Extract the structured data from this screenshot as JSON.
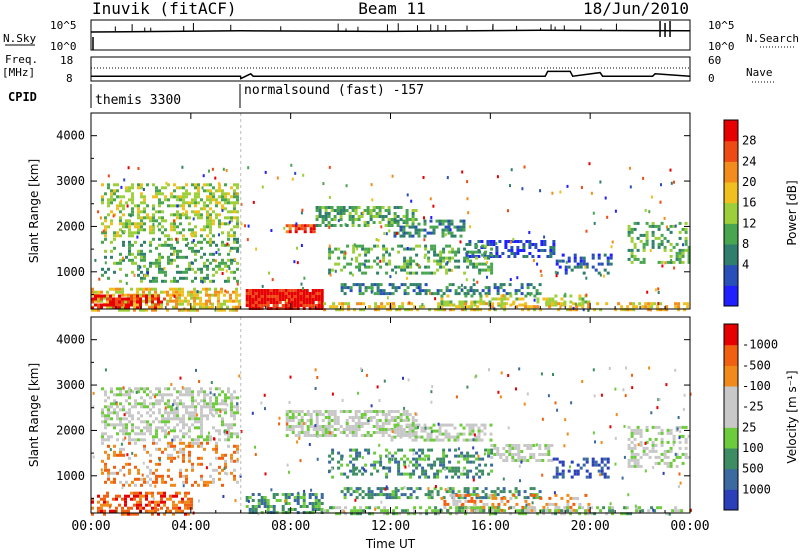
{
  "header": {
    "station": "Inuvik (fitACF)",
    "beam": "Beam 11",
    "date": "18/Jun/2010"
  },
  "top_panels": {
    "nsky_label": "N.Sky",
    "nsky_ticks": [
      "10^5",
      "10^0"
    ],
    "nsearch_label": "N.Search",
    "nsearch_ticks": [
      "10^5",
      "10^0"
    ],
    "freq_label_1": "Freq.",
    "freq_label_2": "[MHz]",
    "freq_ticks": [
      "18",
      "8"
    ],
    "nave_label": "Nave",
    "nave_ticks": [
      "60",
      "0"
    ],
    "cpid_label": "CPID",
    "cpid_entries": [
      {
        "label": "themis 3300",
        "start_hour": 0
      },
      {
        "label": "normalsound (fast) -157",
        "start_hour": 6
      }
    ]
  },
  "chart_data": [
    {
      "type": "heatmap",
      "title": "",
      "xlabel": "",
      "ylabel": "Slant Range [km]",
      "xlim": [
        0,
        24
      ],
      "ylim": [
        180,
        4500
      ],
      "yticks": [
        1000,
        2000,
        3000,
        4000
      ],
      "colorbar": {
        "label": "Power [dB]",
        "ticks": [
          "4",
          "8",
          "12",
          "16",
          "20",
          "24",
          "28"
        ],
        "colors": [
          "#1f1fff",
          "#2850b8",
          "#2f7f6c",
          "#49a54f",
          "#9ccf39",
          "#f0c020",
          "#f28c1c",
          "#ee4a16",
          "#e60000"
        ]
      },
      "regions": [
        {
          "t0": 0.4,
          "t1": 5.9,
          "r0": 1800,
          "r1": 2950,
          "level": 4,
          "density": 0.45
        },
        {
          "t0": 0.4,
          "t1": 5.9,
          "r0": 800,
          "r1": 1750,
          "level": 3,
          "density": 0.3
        },
        {
          "t0": 0.0,
          "t1": 6.0,
          "r0": 180,
          "r1": 650,
          "level": 5,
          "density": 0.6
        },
        {
          "t0": 0.0,
          "t1": 3.0,
          "r0": 180,
          "r1": 500,
          "level": 8,
          "density": 0.5
        },
        {
          "t0": 6.2,
          "t1": 9.3,
          "r0": 180,
          "r1": 620,
          "level": 8,
          "density": 0.95
        },
        {
          "t0": 7.8,
          "t1": 9.0,
          "r0": 1900,
          "r1": 2050,
          "level": 7,
          "density": 0.8
        },
        {
          "t0": 9.0,
          "t1": 13.0,
          "r0": 2000,
          "r1": 2450,
          "level": 3,
          "density": 0.55
        },
        {
          "t0": 12.0,
          "t1": 15.0,
          "r0": 1800,
          "r1": 2150,
          "level": 2,
          "density": 0.5
        },
        {
          "t0": 15.0,
          "t1": 18.5,
          "r0": 1350,
          "r1": 1700,
          "level": 1,
          "density": 0.55
        },
        {
          "t0": 9.5,
          "t1": 16.0,
          "r0": 950,
          "r1": 1600,
          "level": 3,
          "density": 0.35
        },
        {
          "t0": 10.0,
          "t1": 18.0,
          "r0": 500,
          "r1": 750,
          "level": 2,
          "density": 0.5
        },
        {
          "t0": 14.0,
          "t1": 20.0,
          "r0": 250,
          "r1": 500,
          "level": 4,
          "density": 0.4
        },
        {
          "t0": 18.5,
          "t1": 20.8,
          "r0": 1000,
          "r1": 1400,
          "level": 1,
          "density": 0.35
        },
        {
          "t0": 21.5,
          "t1": 24.0,
          "r0": 1200,
          "r1": 2100,
          "level": 3,
          "density": 0.35
        },
        {
          "t0": 9.3,
          "t1": 24.0,
          "r0": 180,
          "r1": 330,
          "level": 5,
          "density": 0.45
        }
      ]
    },
    {
      "type": "heatmap",
      "title": "",
      "xlabel": "Time UT",
      "ylabel": "Slant Range [km]",
      "xlim": [
        0,
        24
      ],
      "ylim": [
        180,
        4500
      ],
      "yticks": [
        1000,
        2000,
        3000,
        4000
      ],
      "xticks": [
        "00:00",
        "04:00",
        "08:00",
        "12:00",
        "16:00",
        "20:00",
        "00:00"
      ],
      "colorbar": {
        "label": "Velocity [m s⁻¹]",
        "ticks": [
          "1000",
          "500",
          "100",
          "25",
          "-25",
          "-100",
          "-500",
          "-1000"
        ],
        "colors": [
          "#2b3fb8",
          "#3a6aa0",
          "#3d8c63",
          "#6dcc3c",
          "#c8c8c8",
          "#c8c8c8",
          "#f08a1a",
          "#f06010",
          "#e60000"
        ]
      },
      "regions": [
        {
          "t0": 0.4,
          "t1": 5.9,
          "r0": 1800,
          "r1": 2950,
          "level": 4,
          "density": 0.5
        },
        {
          "t0": 0.4,
          "t1": 5.9,
          "r0": 800,
          "r1": 1750,
          "level": 6,
          "density": 0.3
        },
        {
          "t0": 0.0,
          "t1": 4.0,
          "r0": 180,
          "r1": 650,
          "level": 7,
          "density": 0.5
        },
        {
          "t0": 6.2,
          "t1": 9.3,
          "r0": 180,
          "r1": 620,
          "level": 2,
          "density": 0.6
        },
        {
          "t0": 7.8,
          "t1": 13.0,
          "r0": 1900,
          "r1": 2450,
          "level": 4,
          "density": 0.6
        },
        {
          "t0": 12.0,
          "t1": 16.0,
          "r0": 1800,
          "r1": 2150,
          "level": 4,
          "density": 0.55
        },
        {
          "t0": 16.0,
          "t1": 18.5,
          "r0": 1350,
          "r1": 1700,
          "level": 4,
          "density": 0.5
        },
        {
          "t0": 9.5,
          "t1": 16.0,
          "r0": 950,
          "r1": 1600,
          "level": 2,
          "density": 0.35
        },
        {
          "t0": 10.0,
          "t1": 18.0,
          "r0": 500,
          "r1": 750,
          "level": 2,
          "density": 0.45
        },
        {
          "t0": 14.0,
          "t1": 20.0,
          "r0": 250,
          "r1": 600,
          "level": 6,
          "density": 0.3
        },
        {
          "t0": 18.5,
          "t1": 20.8,
          "r0": 1000,
          "r1": 1400,
          "level": 0,
          "density": 0.35
        },
        {
          "t0": 21.5,
          "t1": 24.0,
          "r0": 1200,
          "r1": 2100,
          "level": 4,
          "density": 0.35
        },
        {
          "t0": 9.3,
          "t1": 24.0,
          "r0": 180,
          "r1": 330,
          "level": 3,
          "density": 0.45
        }
      ]
    }
  ],
  "nsky_series": {
    "x": [
      0,
      6,
      12,
      18,
      24
    ],
    "y": [
      3,
      3.2,
      3.1,
      3.3,
      3.2
    ]
  },
  "freq_series": {
    "x": [
      0,
      5.99,
      6.0,
      6.4,
      6.5,
      18.2,
      18.3,
      19.2,
      19.3,
      20.4,
      20.5,
      22.5,
      22.6,
      24
    ],
    "y": [
      10,
      10,
      9,
      11,
      10,
      10,
      12,
      12,
      10,
      11.5,
      10,
      10,
      11,
      10
    ]
  }
}
